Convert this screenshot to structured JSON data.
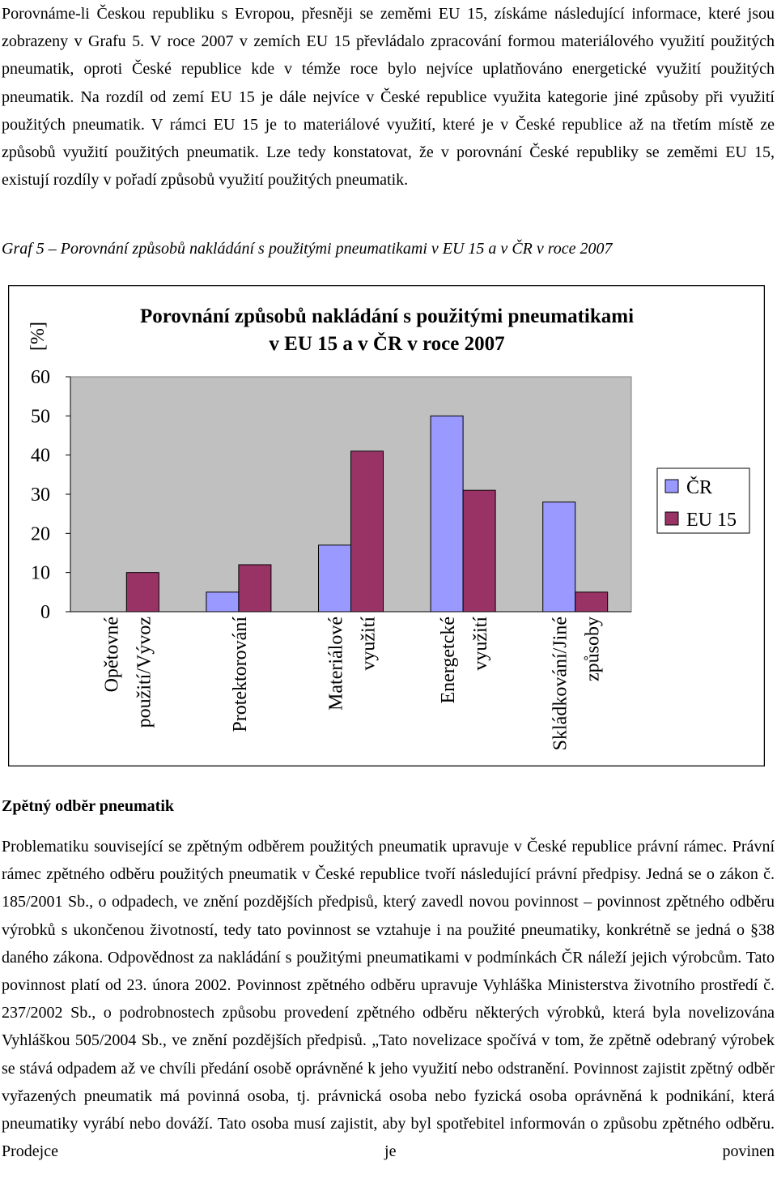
{
  "paragraph_1": "Porovnáme-li Českou republiku s Evropou, přesněji se zeměmi EU 15, získáme následující informace, které jsou zobrazeny v Grafu 5. V roce 2007 v zemích EU 15 převládalo zpracování formou materiálového využití použitých pneumatik, oproti České republice kde v témže roce bylo nejvíce uplatňováno energetické využití použitých pneumatik. Na rozdíl od zemí EU 15 je dále nejvíce v České republice využita kategorie jiné způsoby při využití použitých pneumatik. V rámci EU 15 je to materiálové využití, které je v České republice až na třetím místě ze způsobů využití použitých pneumatik. Lze tedy konstatovat, že v porovnání České republiky se zeměmi EU 15, existují rozdíly v pořadí způsobů využití použitých pneumatik.",
  "caption": "Graf 5 – Porovnání způsobů nakládání s použitými pneumatikami v EU 15 a v ČR v roce 2007",
  "chart_data": {
    "type": "bar",
    "title": [
      "Porovnání způsobů nakládání s použitými pneumatikami",
      "v EU 15 a v ČR v roce 2007"
    ],
    "y_label": "[%]",
    "categories": [
      [
        "Opětovné",
        "použití/Vývoz"
      ],
      [
        "Protektorování"
      ],
      [
        "Materiálové",
        "využití"
      ],
      [
        "Energetcké",
        "využití"
      ],
      [
        "Skládkování/Jiné",
        "způsoby"
      ]
    ],
    "series": [
      {
        "name": "ČR",
        "color": "#9999ff",
        "values": [
          0,
          5,
          17,
          50,
          28
        ]
      },
      {
        "name": "EU 15",
        "color": "#993366",
        "values": [
          10,
          12,
          41,
          31,
          5
        ]
      }
    ],
    "ylim": [
      0,
      60
    ],
    "yticks": [
      0,
      10,
      20,
      30,
      40,
      50,
      60
    ],
    "grid": false,
    "legend": "right",
    "plot_background": "#c0c0c0"
  },
  "heading": "Zpětný odběr pneumatik",
  "paragraph_2": "Problematiku související se zpětným odběrem použitých pneumatik upravuje v České republice právní rámec. Právní rámec zpětného odběru použitých pneumatik v České republice tvoří následující právní předpisy. Jedná se o zákon č. 185/2001 Sb., o odpadech, ve znění pozdějších předpisů, který zavedl novou povinnost – povinnost zpětného odběru výrobků s ukončenou životností, tedy tato povinnost se vztahuje i na použité pneumatiky, konkrétně se jedná o §38 daného zákona. Odpovědnost za nakládání s použitými pneumatikami v podmínkách ČR náleží jejich výrobcům. Tato povinnost platí od 23. února 2002. Povinnost zpětného odběru upravuje Vyhláška Ministerstva životního prostředí č. 237/2002 Sb., o podrobnostech způsobu provedení zpětného odběru některých výrobků, která byla novelizována Vyhláškou 505/2004 Sb., ve znění pozdějších předpisů. „Tato novelizace spočívá v tom, že zpětně odebraný výrobek se stává odpadem až ve chvíli předání osobě oprávněné k jeho využití nebo odstranění. Povinnost zajistit zpětný odběr vyřazených pneumatik má povinná osoba, tj. právnická osoba nebo fyzická osoba oprávněná k podnikání, která pneumatiky vyrábí nebo dováží. Tato osoba musí zajistit, aby byl spotřebitel informován o způsobu zpětného odběru. Prodejce je povinen"
}
